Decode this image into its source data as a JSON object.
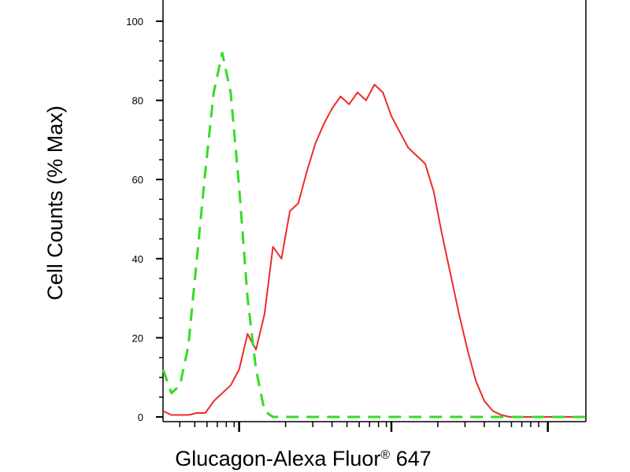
{
  "chart_data": {
    "type": "line",
    "xlabel": "Glucagon-Alexa Fluor",
    "xlabel_superscript": "®",
    "xlabel_suffix": " 647",
    "ylabel": "Cell Counts (% Max)",
    "ylim": [
      0,
      100
    ],
    "yticks": [
      "0",
      "20",
      "40",
      "60",
      "80",
      "100"
    ],
    "xscale": "log",
    "xlim": [
      0,
      100
    ],
    "grid": false,
    "legend": "none",
    "series": [
      {
        "color": "#ee2b2b",
        "linestyle": "solid",
        "x": [
          0,
          2,
          4,
          6,
          8,
          10,
          12,
          14,
          16,
          18,
          20,
          22,
          24,
          26,
          28,
          30,
          32,
          34,
          36,
          38,
          40,
          42,
          44,
          46,
          48,
          50,
          52,
          54,
          56,
          58,
          60,
          62,
          64,
          66,
          68,
          70,
          72,
          74,
          76,
          78,
          80,
          82,
          84,
          86,
          88,
          90,
          92,
          94,
          96,
          98,
          100
        ],
        "y": [
          1.5,
          0.5,
          0.5,
          0.5,
          1,
          1,
          4,
          6,
          8,
          12,
          21,
          17,
          26,
          43,
          40,
          52,
          54,
          62,
          69,
          74,
          78,
          81,
          79,
          82,
          80,
          84,
          82,
          76,
          72,
          68,
          66,
          64,
          57,
          46,
          36,
          26,
          17,
          9,
          4,
          1.5,
          0.5,
          0,
          0,
          0,
          0,
          0,
          0,
          0,
          0,
          0,
          0
        ]
      },
      {
        "color": "#33dd22",
        "linestyle": "dashed",
        "x": [
          0,
          2,
          4,
          6,
          8,
          10,
          12,
          14,
          16,
          18,
          20,
          22,
          24,
          26,
          28,
          30,
          32,
          34,
          36,
          38,
          40,
          42,
          44,
          46,
          48,
          50,
          52,
          54,
          56,
          58,
          60,
          62,
          64,
          66,
          68,
          70,
          72,
          74,
          76,
          78,
          80,
          82,
          84,
          86,
          88,
          90,
          92,
          94,
          96,
          98,
          100
        ],
        "y": [
          12,
          6,
          8,
          18,
          40,
          62,
          82,
          92,
          82,
          58,
          30,
          12,
          1.5,
          0,
          0,
          0,
          0,
          0,
          0,
          0,
          0,
          0,
          0,
          0,
          0,
          0,
          0,
          0,
          0,
          0,
          0,
          0,
          0,
          0,
          0,
          0,
          0,
          0,
          0,
          0,
          0,
          0,
          0,
          0,
          0,
          0,
          0,
          0,
          0,
          0,
          0
        ]
      }
    ]
  }
}
